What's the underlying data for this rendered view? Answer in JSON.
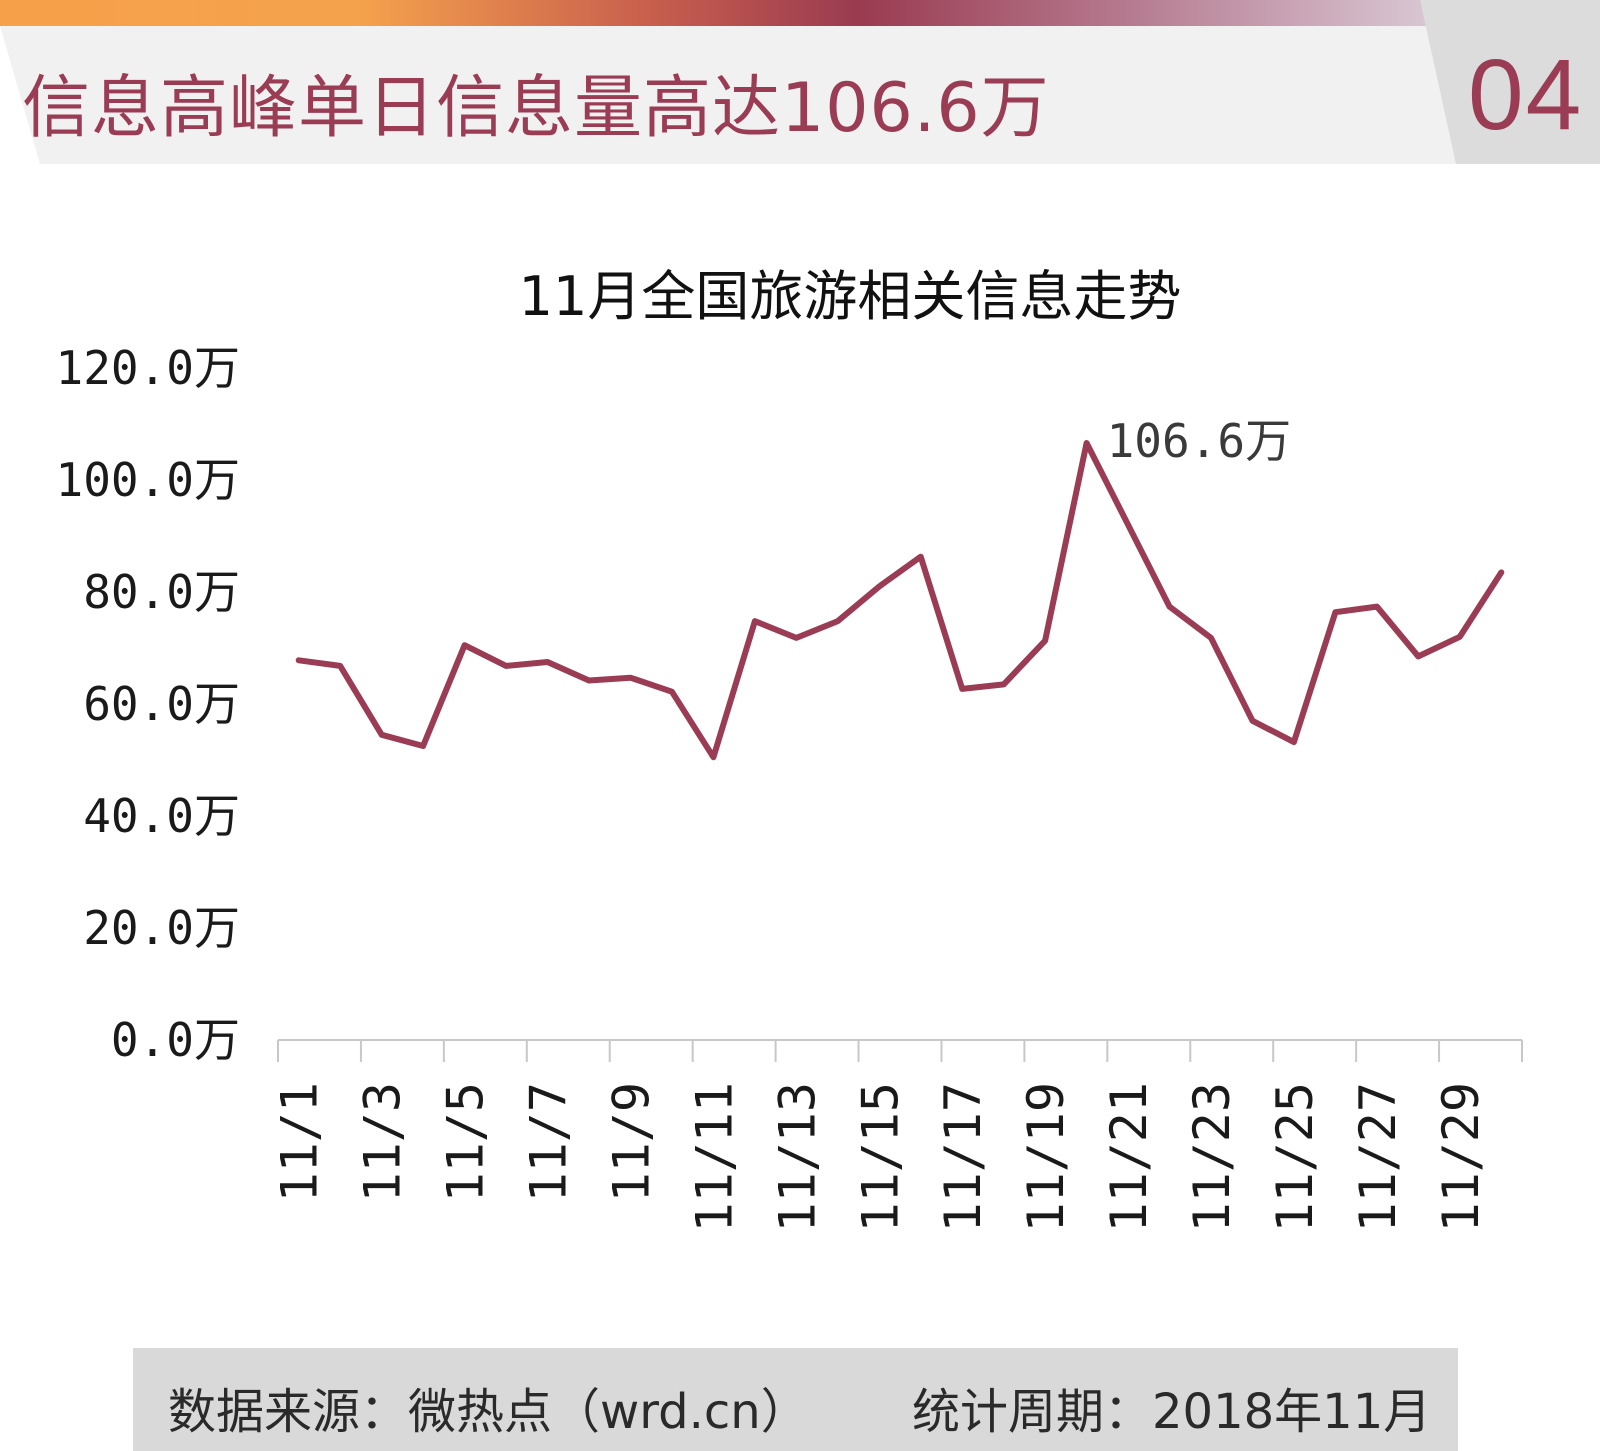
{
  "header": {
    "title": "信息高峰单日信息量高达106.6万",
    "page_number": "04"
  },
  "footer": {
    "source": "数据来源：微热点（wrd.cn）",
    "period": "统计周期：2018年11月"
  },
  "colors": {
    "accent": "#9b3c55",
    "line": "#9b3c55",
    "title_bar_bg": "#f1f1f1",
    "footer_bg": "#d9d9d9"
  },
  "chart_data": {
    "type": "line",
    "title": "11月全国旅游相关信息走势",
    "xlabel": "",
    "ylabel": "",
    "ylim": [
      0,
      120
    ],
    "y_ticks": [
      "0.0万",
      "20.0万",
      "40.0万",
      "60.0万",
      "80.0万",
      "100.0万",
      "120.0万"
    ],
    "y_tick_values": [
      0,
      20,
      40,
      60,
      80,
      100,
      120
    ],
    "grid": false,
    "legend": "none",
    "categories": [
      "11/1",
      "11/2",
      "11/3",
      "11/4",
      "11/5",
      "11/6",
      "11/7",
      "11/8",
      "11/9",
      "11/10",
      "11/11",
      "11/12",
      "11/13",
      "11/14",
      "11/15",
      "11/16",
      "11/17",
      "11/18",
      "11/19",
      "11/20",
      "11/21",
      "11/22",
      "11/23",
      "11/24",
      "11/25",
      "11/26",
      "11/27",
      "11/28",
      "11/29",
      "11/30"
    ],
    "x_tick_labels": [
      "11/1",
      "11/3",
      "11/5",
      "11/7",
      "11/9",
      "11/11",
      "11/13",
      "11/15",
      "11/17",
      "11/19",
      "11/21",
      "11/23",
      "11/25",
      "11/27",
      "11/29"
    ],
    "series": [
      {
        "values": [
          67.8,
          66.8,
          54.5,
          52.5,
          70.5,
          66.8,
          67.5,
          64.2,
          64.7,
          62.2,
          50.5,
          74.8,
          71.8,
          74.8,
          81.0,
          86.3,
          62.7,
          63.5,
          71.3,
          106.6,
          92.0,
          77.4,
          71.8,
          57.0,
          53.2,
          76.4,
          77.4,
          68.5,
          72.0,
          83.5
        ]
      }
    ],
    "annotations": [
      {
        "category": "11/20",
        "text": "106.6万"
      }
    ]
  }
}
